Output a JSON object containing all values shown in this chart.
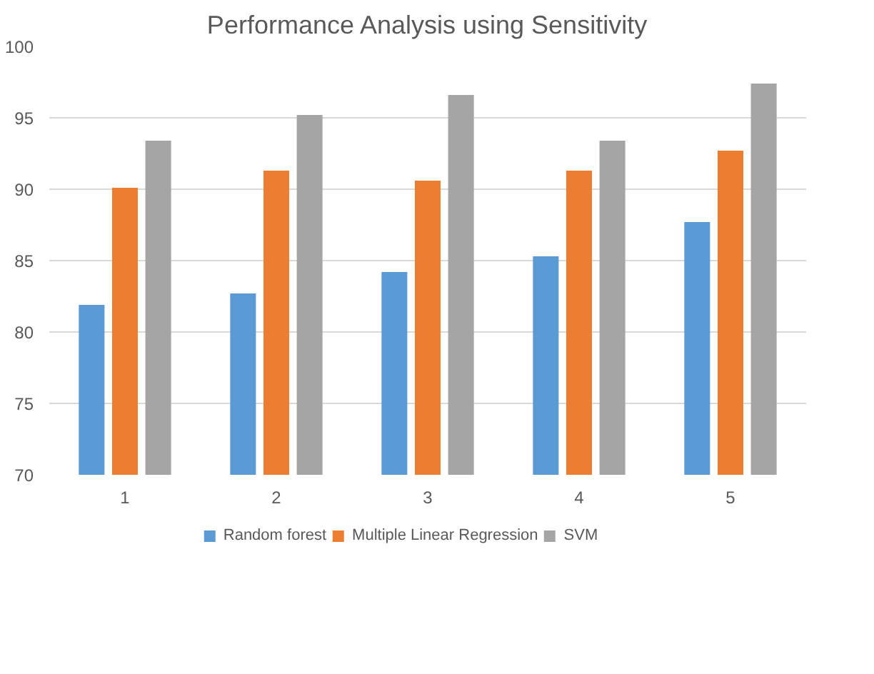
{
  "chart_data": {
    "type": "bar",
    "title": "Performance Analysis using Sensitivity",
    "categories": [
      "1",
      "2",
      "3",
      "4",
      "5"
    ],
    "series": [
      {
        "name": "Random forest",
        "color": "#5b9bd5",
        "values": [
          81.9,
          82.7,
          84.2,
          85.3,
          87.7
        ]
      },
      {
        "name": "Multiple Linear Regression",
        "color": "#ed7d31",
        "values": [
          90.1,
          91.3,
          90.6,
          91.3,
          92.7
        ]
      },
      {
        "name": "SVM",
        "color": "#a5a5a5",
        "values": [
          93.4,
          95.2,
          96.6,
          93.4,
          97.4
        ]
      }
    ],
    "ylim": [
      70,
      100
    ],
    "yticks": [
      70,
      75,
      80,
      85,
      90,
      95,
      100
    ],
    "grid": "y",
    "legend": "bottom"
  }
}
